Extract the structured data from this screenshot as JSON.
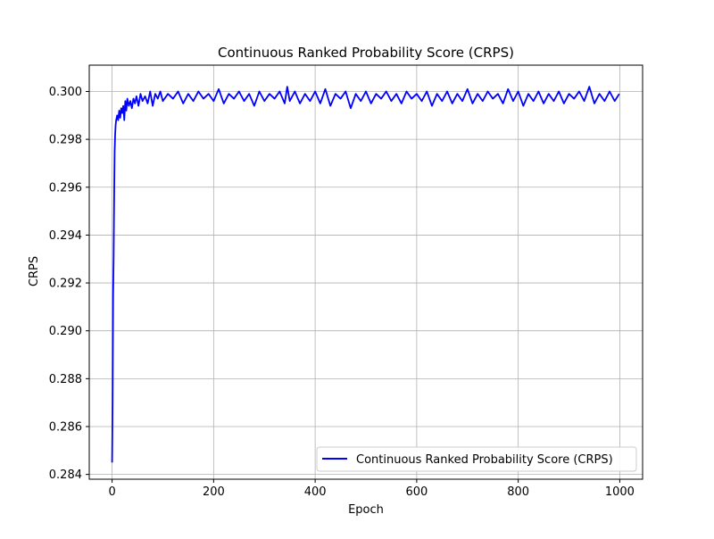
{
  "chart_data": {
    "type": "line",
    "title": "Continuous Ranked Probability Score (CRPS)",
    "xlabel": "Epoch",
    "ylabel": "CRPS",
    "xlim": [
      -45,
      1045
    ],
    "ylim": [
      0.2838,
      0.3011
    ],
    "xticks": [
      0,
      200,
      400,
      600,
      800,
      1000
    ],
    "xtick_labels": [
      "0",
      "200",
      "400",
      "600",
      "800",
      "1000"
    ],
    "yticks": [
      0.284,
      0.286,
      0.288,
      0.29,
      0.292,
      0.294,
      0.296,
      0.298,
      0.3
    ],
    "ytick_labels": [
      "0.284",
      "0.286",
      "0.288",
      "0.290",
      "0.292",
      "0.294",
      "0.296",
      "0.298",
      "0.300"
    ],
    "grid": true,
    "legend_position": "lower-right",
    "series": [
      {
        "name": "Continuous Ranked Probability Score (CRPS)",
        "color": "#0000ff",
        "x": [
          0,
          1,
          2,
          3,
          4,
          5,
          6,
          7,
          8,
          10,
          12,
          14,
          16,
          18,
          20,
          22,
          24,
          26,
          28,
          30,
          33,
          36,
          39,
          42,
          45,
          48,
          52,
          56,
          60,
          65,
          70,
          75,
          80,
          85,
          90,
          95,
          100,
          110,
          120,
          130,
          140,
          150,
          160,
          170,
          180,
          190,
          200,
          210,
          220,
          230,
          240,
          250,
          260,
          270,
          280,
          290,
          300,
          310,
          320,
          330,
          340,
          345,
          350,
          360,
          370,
          380,
          390,
          400,
          410,
          420,
          430,
          440,
          450,
          460,
          470,
          480,
          490,
          500,
          510,
          520,
          530,
          540,
          550,
          560,
          570,
          580,
          590,
          600,
          610,
          620,
          630,
          640,
          650,
          660,
          670,
          680,
          690,
          700,
          710,
          720,
          730,
          740,
          750,
          760,
          770,
          780,
          790,
          800,
          810,
          820,
          830,
          840,
          850,
          860,
          870,
          880,
          890,
          900,
          910,
          920,
          930,
          940,
          950,
          960,
          970,
          980,
          990,
          999
        ],
        "y": [
          0.2845,
          0.287,
          0.2915,
          0.293,
          0.2955,
          0.2975,
          0.2982,
          0.2986,
          0.2988,
          0.299,
          0.2988,
          0.2992,
          0.2989,
          0.2993,
          0.2991,
          0.2994,
          0.2988,
          0.2996,
          0.2992,
          0.2997,
          0.2994,
          0.2996,
          0.2993,
          0.2997,
          0.2995,
          0.2998,
          0.2994,
          0.2999,
          0.2996,
          0.2998,
          0.2995,
          0.3,
          0.2994,
          0.2999,
          0.2997,
          0.3,
          0.2996,
          0.2999,
          0.2997,
          0.3,
          0.2995,
          0.2999,
          0.2996,
          0.3,
          0.2997,
          0.2999,
          0.2996,
          0.3001,
          0.2995,
          0.2999,
          0.2997,
          0.3,
          0.2996,
          0.2999,
          0.2994,
          0.3,
          0.2996,
          0.2999,
          0.2997,
          0.3,
          0.2995,
          0.3002,
          0.2996,
          0.3,
          0.2995,
          0.2999,
          0.2996,
          0.3,
          0.2995,
          0.3001,
          0.2994,
          0.2999,
          0.2997,
          0.3,
          0.2993,
          0.2999,
          0.2996,
          0.3,
          0.2995,
          0.2999,
          0.2997,
          0.3,
          0.2996,
          0.2999,
          0.2995,
          0.3,
          0.2997,
          0.2999,
          0.2996,
          0.3,
          0.2994,
          0.2999,
          0.2996,
          0.3,
          0.2995,
          0.2999,
          0.2996,
          0.3001,
          0.2995,
          0.2999,
          0.2996,
          0.3,
          0.2997,
          0.2999,
          0.2995,
          0.3001,
          0.2996,
          0.3,
          0.2994,
          0.2999,
          0.2996,
          0.3,
          0.2995,
          0.2999,
          0.2996,
          0.3,
          0.2995,
          0.2999,
          0.2997,
          0.3,
          0.2996,
          0.3002,
          0.2995,
          0.2999,
          0.2996,
          0.3,
          0.2996,
          0.2999
        ]
      }
    ]
  }
}
